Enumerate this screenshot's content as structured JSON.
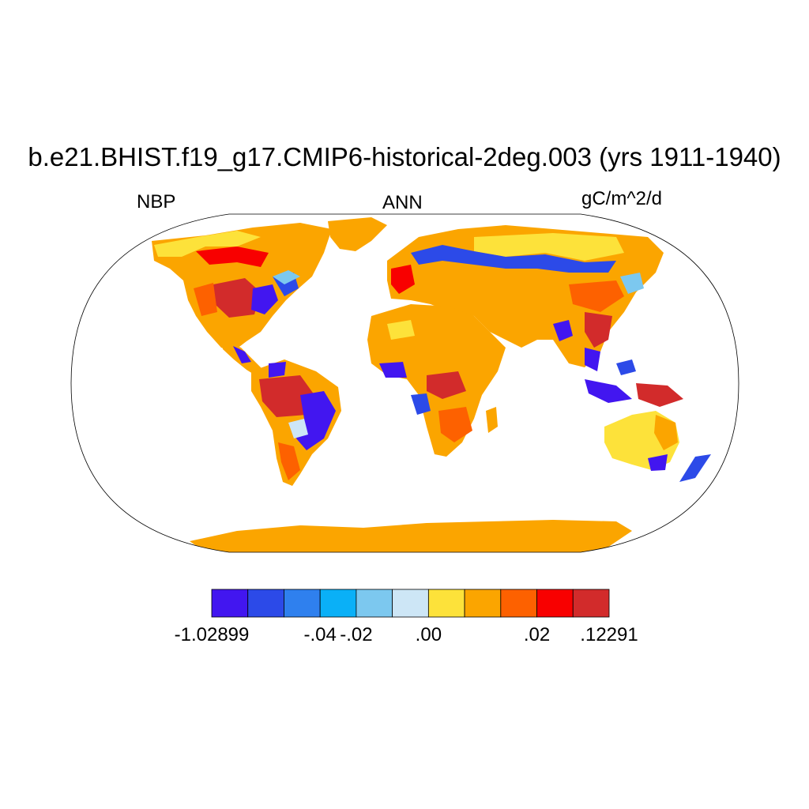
{
  "title": "b.e21.BHIST.f19_g17.CMIP6-historical-2deg.003 (yrs 1911-1940)",
  "left_label": "NBP",
  "center_label": "ANN",
  "right_label": "gC/m^2/d",
  "colorbar": {
    "colors": [
      "#4216f0",
      "#2c4ae8",
      "#2f80ee",
      "#0ab0f7",
      "#7cc8ef",
      "#cde6f6",
      "#fde23a",
      "#fba500",
      "#fd6100",
      "#f80000",
      "#d22b2b"
    ],
    "labels": [
      "-1.02899",
      "-.04",
      "-.02",
      ".00",
      ".02",
      ".12291"
    ]
  }
}
